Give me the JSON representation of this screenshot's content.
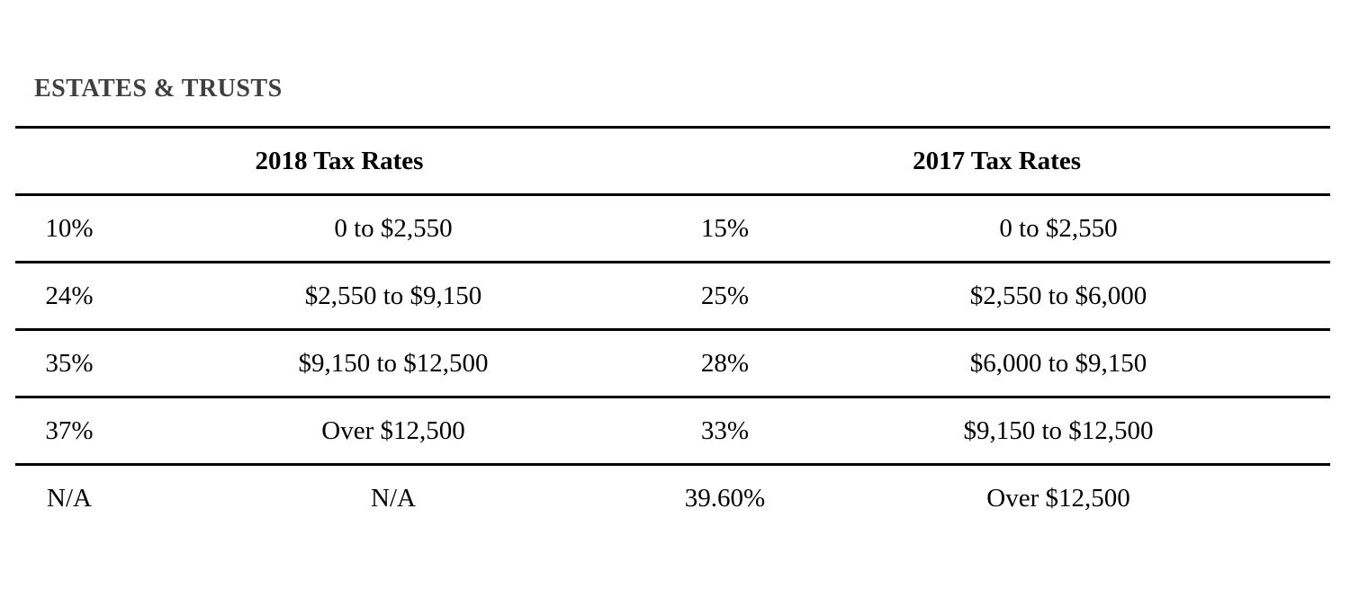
{
  "page": {
    "title": "ESTATES & TRUSTS"
  },
  "colors": {
    "title_color": "#3f3f3f",
    "text_color": "#000000",
    "rule_color": "#000000",
    "background": "#ffffff"
  },
  "table": {
    "column_groups": [
      {
        "label": "2018 Tax Rates"
      },
      {
        "label": "2017 Tax Rates"
      }
    ],
    "rows": [
      {
        "rate_2018": "10%",
        "range_2018": "0 to $2,550",
        "rate_2017": "15%",
        "range_2017": "0 to $2,550"
      },
      {
        "rate_2018": "24%",
        "range_2018": "$2,550 to $9,150",
        "rate_2017": "25%",
        "range_2017": "$2,550 to $6,000"
      },
      {
        "rate_2018": "35%",
        "range_2018": "$9,150 to $12,500",
        "rate_2017": "28%",
        "range_2017": "$6,000 to $9,150"
      },
      {
        "rate_2018": "37%",
        "range_2018": "Over $12,500",
        "rate_2017": "33%",
        "range_2017": "$9,150 to $12,500"
      },
      {
        "rate_2018": "N/A",
        "range_2018": "N/A",
        "rate_2017": "39.60%",
        "range_2017": "Over $12,500"
      }
    ]
  }
}
